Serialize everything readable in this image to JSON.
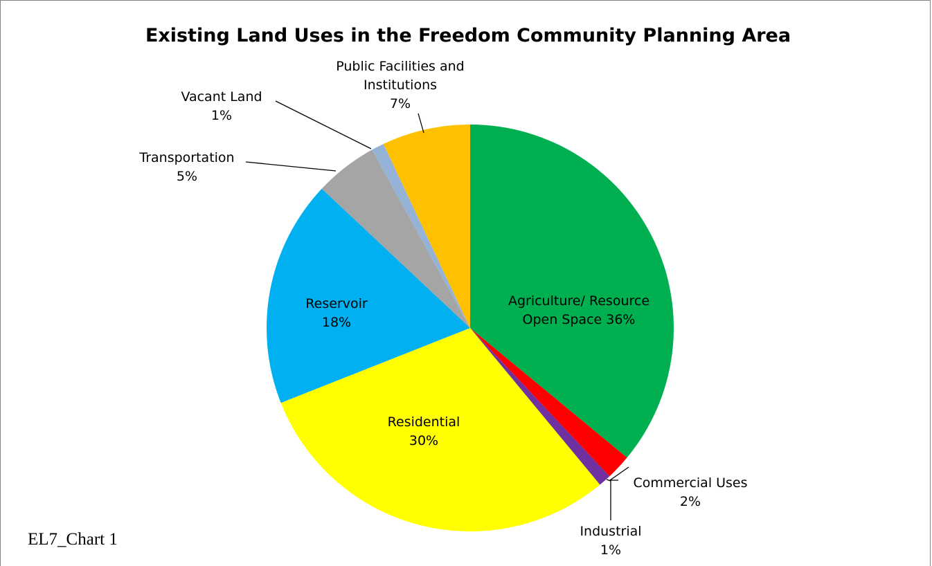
{
  "chart_data": {
    "type": "pie",
    "title": "Existing Land Uses in the Freedom Community Planning Area",
    "slices": [
      {
        "name": "Agriculture/ Resource Open Space",
        "label_lines": [
          "Agriculture/ Resource",
          "Open Space 36%"
        ],
        "value": 36,
        "color": "#00b050"
      },
      {
        "name": "Commercial Uses",
        "label_lines": [
          "Commercial Uses",
          "2%"
        ],
        "value": 2,
        "color": "#ff0000"
      },
      {
        "name": "Industrial",
        "label_lines": [
          "Industrial",
          "1%"
        ],
        "value": 1,
        "color": "#7030a0"
      },
      {
        "name": "Residential",
        "label_lines": [
          "Residential",
          "30%"
        ],
        "value": 30,
        "color": "#ffff00"
      },
      {
        "name": "Reservoir",
        "label_lines": [
          "Reservoir",
          "18%"
        ],
        "value": 18,
        "color": "#00b0f0"
      },
      {
        "name": "Transportation",
        "label_lines": [
          "Transportation",
          "5%"
        ],
        "value": 5,
        "color": "#a5a5a5"
      },
      {
        "name": "Vacant Land",
        "label_lines": [
          "Vacant Land",
          "1%"
        ],
        "value": 1,
        "color": "#95b3d7"
      },
      {
        "name": "Public Facilities and Institutions",
        "label_lines": [
          "Public Facilities and",
          "Institutions",
          "7%"
        ],
        "value": 7,
        "color": "#ffc000"
      }
    ]
  },
  "caption": "EL7_Chart 1"
}
